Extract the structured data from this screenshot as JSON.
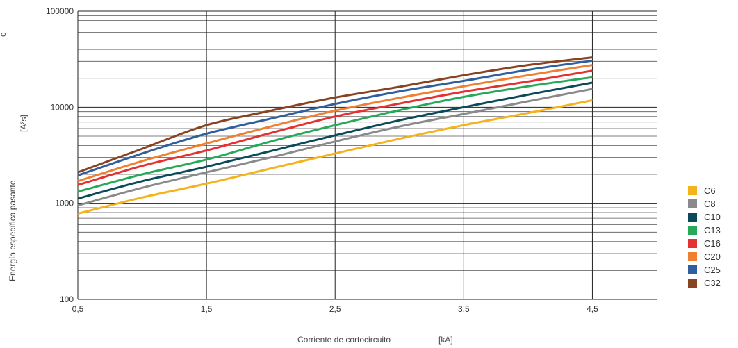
{
  "chart_data": {
    "type": "line",
    "title": "",
    "xlabel": "Corriente de cortocircuito",
    "xunit": "[kA]",
    "ylabel": "Energía específica pasante",
    "yunit": "[A²s]",
    "y_cut_label": "e",
    "xscale": "linear",
    "yscale": "log",
    "xlim": [
      0.5,
      5.0
    ],
    "ylim": [
      100,
      100000
    ],
    "xticks": [
      0.5,
      1.5,
      2.5,
      3.5,
      4.5
    ],
    "xtick_labels": [
      "0,5",
      "1,5",
      "2,5",
      "3,5",
      "4,5"
    ],
    "yticks": [
      100,
      1000,
      10000,
      100000
    ],
    "ytick_labels": [
      "100",
      "1000",
      "10000",
      "100000"
    ],
    "grid": true,
    "legend_position": "right",
    "x": [
      0.5,
      1.0,
      1.5,
      2.0,
      2.5,
      3.0,
      3.5,
      4.0,
      4.5
    ],
    "series": [
      {
        "name": "C6",
        "color": "#f6b21b",
        "values": [
          780,
          1150,
          1600,
          2300,
          3300,
          4700,
          6500,
          8700,
          11800
        ]
      },
      {
        "name": "C8",
        "color": "#8a8a8c",
        "values": [
          950,
          1450,
          2100,
          3000,
          4400,
          6300,
          8500,
          11500,
          15500
        ]
      },
      {
        "name": "C10",
        "color": "#0b4a5a",
        "values": [
          1120,
          1700,
          2400,
          3500,
          5100,
          7300,
          10000,
          13500,
          18000
        ]
      },
      {
        "name": "C13",
        "color": "#27a95a",
        "values": [
          1320,
          2000,
          2850,
          4400,
          6500,
          9300,
          12800,
          16500,
          20500
        ]
      },
      {
        "name": "C16",
        "color": "#e53131",
        "values": [
          1550,
          2450,
          3550,
          5400,
          8000,
          10900,
          14500,
          18500,
          24000
        ]
      },
      {
        "name": "C20",
        "color": "#f07f31",
        "values": [
          1700,
          2750,
          4200,
          6300,
          9200,
          12500,
          16500,
          21500,
          27500
        ]
      },
      {
        "name": "C25",
        "color": "#2f5f9e",
        "values": [
          1950,
          3300,
          5300,
          7600,
          10800,
          14600,
          18800,
          24500,
          30500
        ]
      },
      {
        "name": "C32",
        "color": "#8a4321",
        "values": [
          2100,
          3700,
          6500,
          9200,
          12600,
          16300,
          21500,
          27500,
          33000
        ]
      }
    ]
  }
}
